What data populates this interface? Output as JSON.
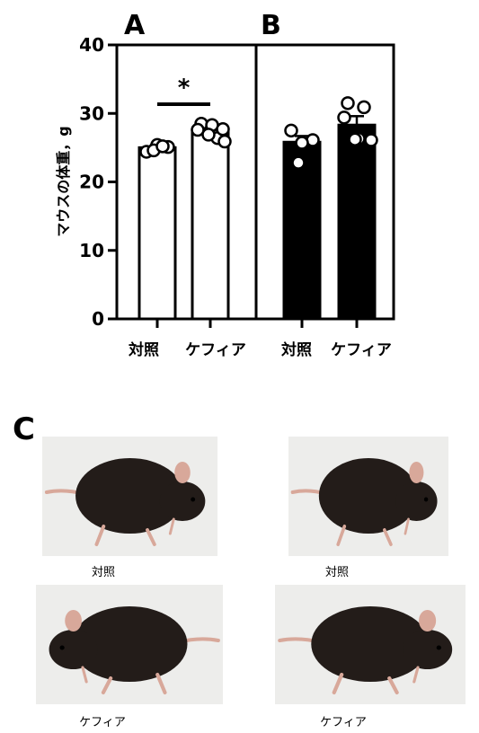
{
  "panels": {
    "a": "A",
    "b": "B",
    "c": "C"
  },
  "chart_data": {
    "type": "bar",
    "ylabel": "マウスの体重，g",
    "ylim": [
      0,
      40
    ],
    "yticks": [
      0,
      10,
      20,
      30,
      40
    ],
    "groups": [
      {
        "panel": "A",
        "fill": "open",
        "categories": [
          "対照",
          "ケフィア"
        ],
        "values": [
          25.0,
          27.6
        ],
        "errors": [
          0.4,
          0.6
        ],
        "points": [
          [
            24.4,
            25.1,
            25.4,
            24.6,
            25.2
          ],
          [
            28.5,
            26.4,
            27.6,
            25.9,
            28.3,
            26.9,
            27.7
          ]
        ],
        "significance": {
          "between": [
            "対照",
            "ケフィア"
          ],
          "label": "*"
        }
      },
      {
        "panel": "B",
        "fill": "filled",
        "categories": [
          "対照",
          "ケフィア"
        ],
        "values": [
          25.8,
          28.3
        ],
        "errors": [
          0.9,
          1.3
        ],
        "points": [
          [
            27.5,
            26.1,
            25.7,
            22.8
          ],
          [
            31.5,
            30.9,
            29.4,
            26.1,
            26.3,
            26.2
          ]
        ]
      }
    ]
  },
  "photos": {
    "captions": [
      "対照",
      "対照",
      "ケフィア",
      "ケフィア"
    ],
    "background": "#ededeb",
    "fur": "#231c19",
    "ear": "#d8a89a"
  }
}
